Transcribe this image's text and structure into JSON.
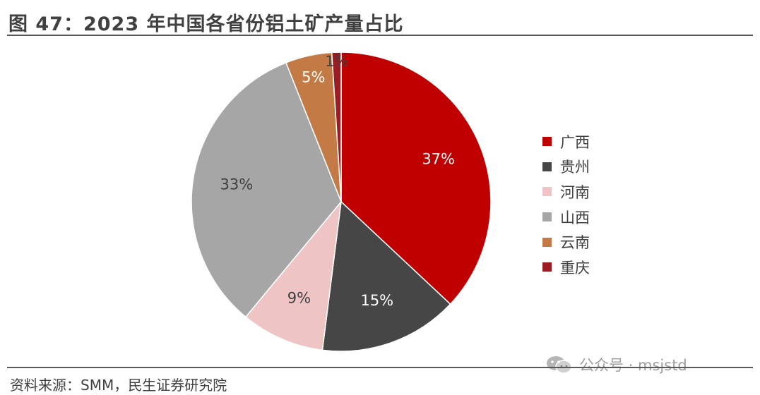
{
  "header": {
    "title": "图 47：2023 年中国各省份铝土矿产量占比"
  },
  "footer": {
    "source": "资料来源：SMM，民生证券研究院"
  },
  "watermark": {
    "text": "公众号 · msjstd",
    "icon": "wechat-icon"
  },
  "chart_data": {
    "type": "pie",
    "title": "图 47：2023 年中国各省份铝土矿产量占比",
    "categories": [
      "广西",
      "贵州",
      "河南",
      "山西",
      "云南",
      "重庆"
    ],
    "values": [
      37,
      15,
      9,
      33,
      5,
      1
    ],
    "labels": [
      "37%",
      "15%",
      "9%",
      "33%",
      "5%",
      "1%"
    ],
    "colors": [
      "#c00000",
      "#464646",
      "#efc4c4",
      "#a6a6a6",
      "#c47a44",
      "#9b1c22"
    ],
    "label_colors": [
      "#ffffff",
      "#ffffff",
      "#404040",
      "#404040",
      "#ffffff",
      "#404040"
    ],
    "legend_position": "right",
    "start": "top",
    "direction": "clockwise"
  }
}
